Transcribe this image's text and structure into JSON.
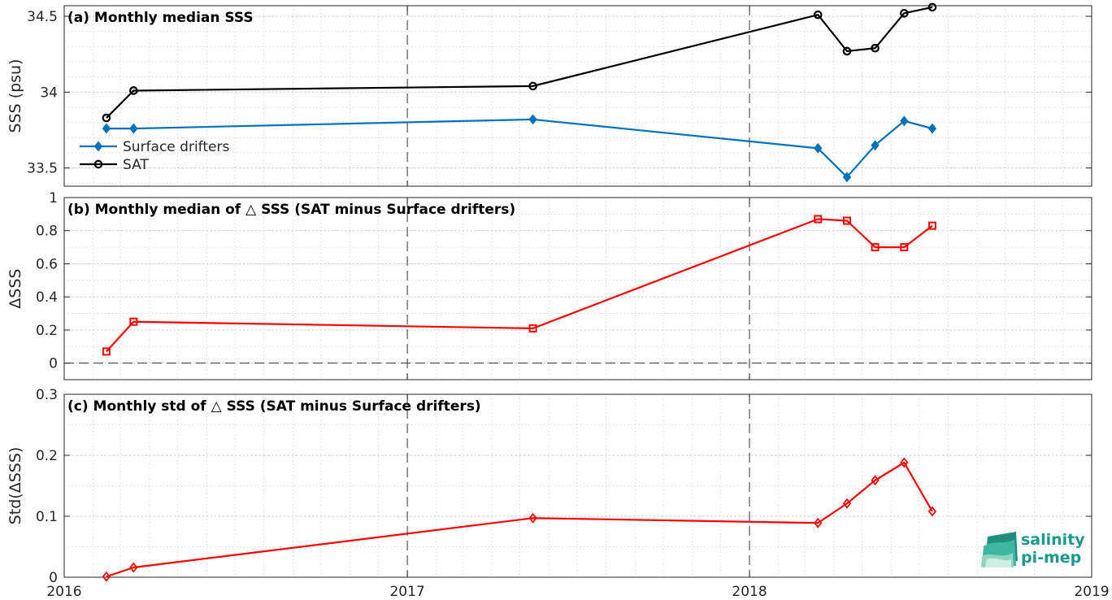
{
  "chart_data": [
    {
      "type": "line",
      "panel": "a",
      "title": "(a) Monthly median SSS",
      "ylabel": "SSS (psu)",
      "ylim": [
        33.38,
        34.57
      ],
      "yticks": [
        33.5,
        34,
        34.5
      ],
      "ytick_labels": [
        "33.5",
        "34",
        "34.5"
      ],
      "xlim": [
        "2016-01-01",
        "2019-01-01"
      ],
      "grid": true,
      "legend": {
        "placement": "bottom-left"
      },
      "series": [
        {
          "name": "Surface drifters",
          "color": "#0072BD",
          "marker": "diamond",
          "x": [
            "2016-02-15",
            "2016-03-15",
            "2017-05-15",
            "2018-03-15",
            "2018-04-15",
            "2018-05-15",
            "2018-06-15",
            "2018-07-15"
          ],
          "values": [
            33.76,
            33.76,
            33.82,
            33.63,
            33.44,
            33.65,
            33.81,
            33.76
          ]
        },
        {
          "name": "SAT",
          "color": "#000000",
          "marker": "circle",
          "x": [
            "2016-02-15",
            "2016-03-15",
            "2017-05-15",
            "2018-03-15",
            "2018-04-15",
            "2018-05-15",
            "2018-06-15",
            "2018-07-15"
          ],
          "values": [
            33.83,
            34.01,
            34.04,
            34.51,
            34.27,
            34.29,
            34.52,
            34.56
          ]
        }
      ]
    },
    {
      "type": "line",
      "panel": "b",
      "title": "(b) Monthly median of △ SSS (SAT minus Surface drifters)",
      "ylabel": "ΔSSS",
      "ylim": [
        -0.1,
        1
      ],
      "yticks": [
        0,
        0.2,
        0.4,
        0.6,
        0.8,
        1
      ],
      "ytick_labels": [
        "0",
        "0.2",
        "0.4",
        "0.6",
        "0.8",
        "1"
      ],
      "xlim": [
        "2016-01-01",
        "2019-01-01"
      ],
      "grid": true,
      "zero_line": true,
      "series": [
        {
          "color": "#FF0000",
          "marker": "square",
          "x": [
            "2016-02-15",
            "2016-03-15",
            "2017-05-15",
            "2018-03-15",
            "2018-04-15",
            "2018-05-15",
            "2018-06-15",
            "2018-07-15"
          ],
          "values": [
            0.07,
            0.25,
            0.21,
            0.87,
            0.86,
            0.7,
            0.7,
            0.83
          ]
        }
      ]
    },
    {
      "type": "line",
      "panel": "c",
      "title": "(c) Monthly std of △ SSS (SAT minus Surface drifters)",
      "ylabel": "Std(ΔSSS)",
      "ylim": [
        0,
        0.3
      ],
      "yticks": [
        0,
        0.1,
        0.2,
        0.3
      ],
      "ytick_labels": [
        "0",
        "0.1",
        "0.2",
        "0.3"
      ],
      "xlim": [
        "2016-01-01",
        "2019-01-01"
      ],
      "xticks": [
        "2016-01-01",
        "2017-01-01",
        "2018-01-01",
        "2019-01-01"
      ],
      "xtick_labels": [
        "2016",
        "2017",
        "2018",
        "2019"
      ],
      "grid": true,
      "series": [
        {
          "color": "#FF0000",
          "marker": "diamond",
          "x": [
            "2016-02-15",
            "2016-03-15",
            "2017-05-15",
            "2018-03-15",
            "2018-04-15",
            "2018-05-15",
            "2018-06-15",
            "2018-07-15"
          ],
          "values": [
            0.001,
            0.016,
            0.097,
            0.089,
            0.121,
            0.159,
            0.188,
            0.108
          ]
        }
      ]
    }
  ],
  "logo": {
    "line1": "salinity",
    "line2": "pi-mep",
    "color": "#1a9a8a"
  }
}
